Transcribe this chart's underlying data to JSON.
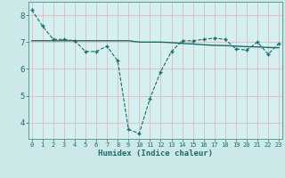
{
  "title": "",
  "xlabel": "Humidex (Indice chaleur)",
  "ylabel": "",
  "bg_color": "#cce8e8",
  "plot_bg_color": "#d4f0f0",
  "grid_color": "#e8b8b8",
  "line_color": "#1a6b6b",
  "x_ticks": [
    0,
    1,
    2,
    3,
    4,
    5,
    6,
    7,
    8,
    9,
    10,
    11,
    12,
    13,
    14,
    15,
    16,
    17,
    18,
    19,
    20,
    21,
    22,
    23
  ],
  "y_ticks": [
    4,
    5,
    6,
    7,
    8
  ],
  "ylim": [
    3.4,
    8.5
  ],
  "xlim": [
    -0.3,
    23.3
  ],
  "line1_x": [
    0,
    1,
    2,
    3,
    4,
    5,
    6,
    7,
    8,
    9,
    10,
    11,
    12,
    13,
    14,
    15,
    16,
    17,
    18,
    19,
    20,
    21,
    22,
    23
  ],
  "line1_y": [
    8.2,
    7.6,
    7.1,
    7.1,
    7.05,
    6.65,
    6.65,
    6.85,
    6.3,
    3.75,
    3.6,
    4.9,
    5.9,
    6.65,
    7.05,
    7.05,
    7.1,
    7.15,
    7.1,
    6.75,
    6.7,
    7.0,
    6.55,
    6.95
  ],
  "line2_x": [
    0,
    1,
    2,
    3,
    4,
    5,
    6,
    7,
    8,
    9,
    10,
    11,
    12,
    13,
    14,
    15,
    16,
    17,
    18,
    19,
    20,
    21,
    22,
    23
  ],
  "line2_y": [
    7.05,
    7.05,
    7.05,
    7.05,
    7.05,
    7.05,
    7.05,
    7.05,
    7.05,
    7.05,
    7.0,
    7.0,
    7.0,
    6.98,
    6.95,
    6.93,
    6.9,
    6.88,
    6.87,
    6.85,
    6.83,
    6.82,
    6.8,
    6.79
  ]
}
